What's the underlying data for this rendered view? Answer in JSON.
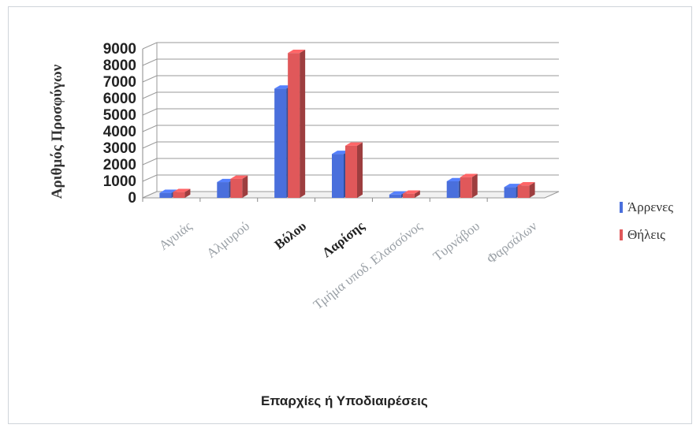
{
  "chart_data": {
    "type": "bar",
    "title": "",
    "xlabel": "Επαρχίες ή Υποδιαιρέσεις",
    "ylabel": "Αριθμός Προσφύγων",
    "ylim": [
      0,
      9000
    ],
    "yticks": [
      "0",
      "1000",
      "2000",
      "3000",
      "4000",
      "5000",
      "6000",
      "7000",
      "8000",
      "9000"
    ],
    "grid": true,
    "legend_position": "right",
    "categories": [
      "Αγυιάς",
      "Αλμυρού",
      "Βόλου",
      "Λαρίσης",
      "Τμήμα υποδ. Ελασσόνος",
      "Τυρνάβου",
      "Φαρσάλων"
    ],
    "series": [
      {
        "name": "Άρρενες",
        "color": "#4a6fdc",
        "values": [
          300,
          950,
          6600,
          2650,
          200,
          1000,
          650
        ]
      },
      {
        "name": "Θήλεις",
        "color": "#e0585a",
        "values": [
          350,
          1150,
          8750,
          3150,
          250,
          1250,
          750
        ]
      }
    ]
  }
}
